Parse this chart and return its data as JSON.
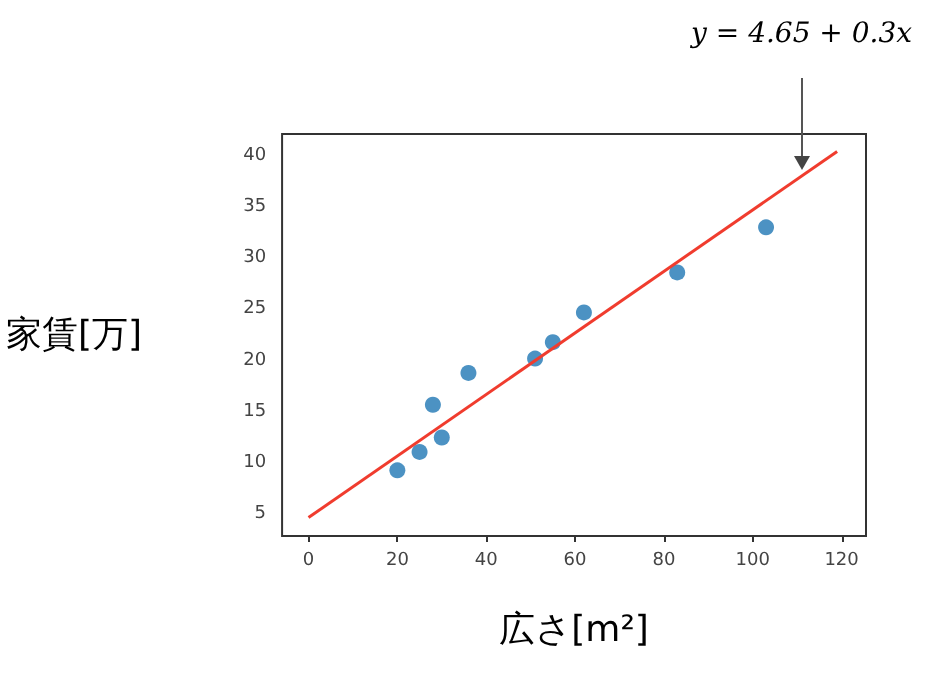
{
  "chart_data": {
    "type": "scatter",
    "xlabel": "広さ[m²]",
    "ylabel": "家賃[万]",
    "annotations": [
      {
        "text": "y = 4.65 + 0.3x",
        "x": 111,
        "y": 38.6
      }
    ],
    "xlim": [
      -5.95,
      125.5
    ],
    "ylim": [
      2.9,
      42.1
    ],
    "xticks": [
      0,
      20,
      40,
      60,
      80,
      100,
      120
    ],
    "yticks": [
      5,
      10,
      15,
      20,
      25,
      30,
      35,
      40
    ],
    "grid": false,
    "marker": "circle",
    "series": [
      {
        "color": "#1f77b4",
        "x": [
          20,
          25,
          28,
          30,
          36,
          51,
          55,
          62,
          83,
          103
        ],
        "values": [
          9.3,
          11.1,
          15.7,
          12.5,
          18.8,
          20.2,
          21.8,
          24.7,
          28.6,
          33
        ]
      },
      {
        "type": "line",
        "color": "#f03c2e",
        "marker": "none",
        "x": [
          0,
          119
        ],
        "values": [
          4.7,
          40.4
        ]
      }
    ]
  }
}
